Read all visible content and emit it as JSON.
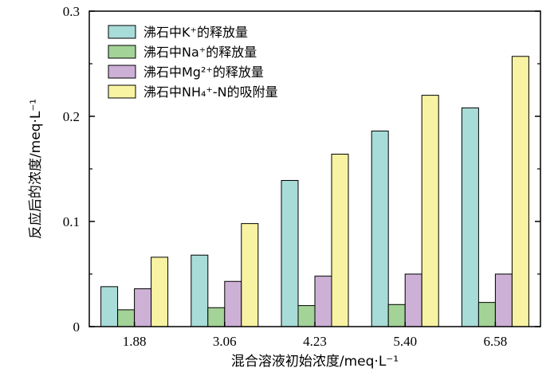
{
  "chart_data": {
    "type": "bar",
    "categories": [
      "1.88",
      "3.06",
      "4.23",
      "5.40",
      "6.58"
    ],
    "series": [
      {
        "name": "沸石中K⁺的释放量",
        "color": "#a8dcd8",
        "values": [
          0.038,
          0.068,
          0.139,
          0.186,
          0.208
        ]
      },
      {
        "name": "沸石中Na⁺的释放量",
        "color": "#a3d397",
        "values": [
          0.016,
          0.018,
          0.02,
          0.021,
          0.023
        ]
      },
      {
        "name": "沸石中Mg²⁺的释放量",
        "color": "#cdb0d6",
        "values": [
          0.036,
          0.043,
          0.048,
          0.05,
          0.05
        ]
      },
      {
        "name": "沸石中NH₄⁺-N的吸附量",
        "color": "#f8f3a2",
        "values": [
          0.066,
          0.098,
          0.164,
          0.22,
          0.257
        ]
      }
    ],
    "ylim": [
      0,
      0.3
    ],
    "yticks": [
      "0",
      "0.1",
      "0.2",
      "0.3"
    ],
    "xlabel": "混合溶液初始浓度/meq·L⁻¹",
    "ylabel": "反应后的浓度/meq·L⁻¹",
    "legend_position": "top-left",
    "grid": false
  }
}
